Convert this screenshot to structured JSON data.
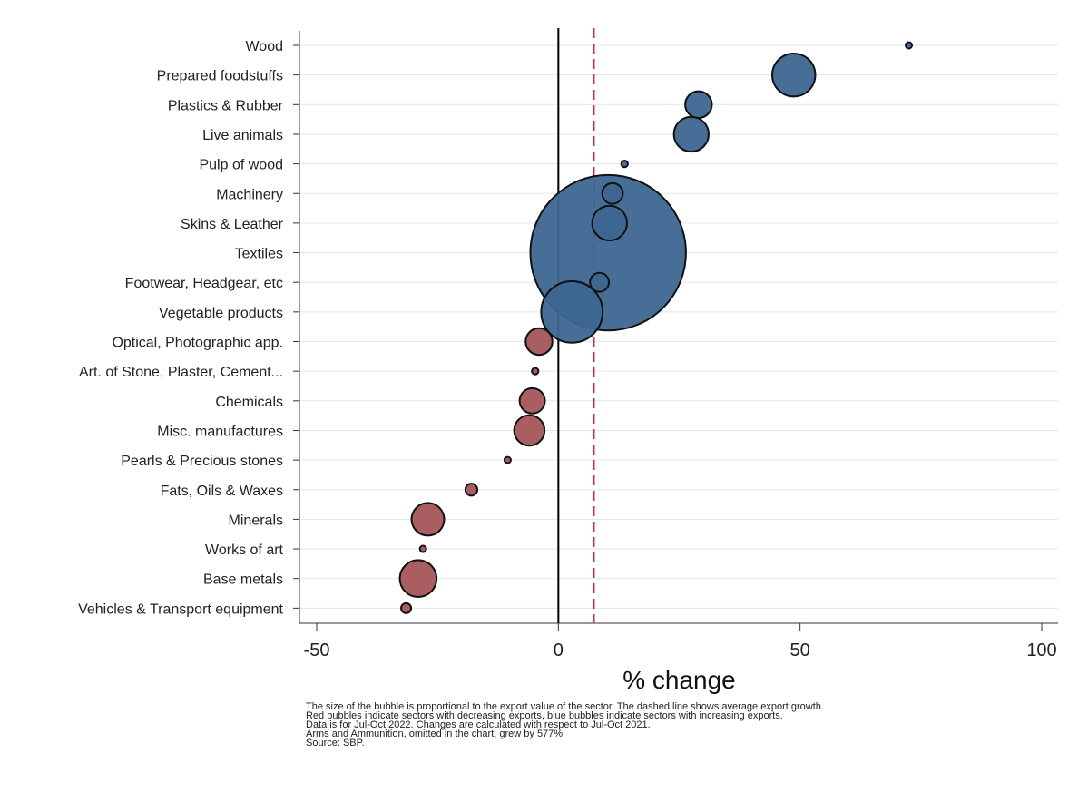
{
  "chart_data": {
    "type": "scatter",
    "subtype": "bubble",
    "xlabel": "% change",
    "xlim": [
      -50,
      100
    ],
    "xticks": [
      -50,
      0,
      50,
      100
    ],
    "reference_lines": {
      "zero": 0,
      "average_growth": 7.3
    },
    "grid": true,
    "colors": {
      "increase": "#3d6690",
      "decrease": "#a45558",
      "average_line": "#c03048",
      "zero_line": "#000000",
      "grid": "#dde6ee"
    },
    "categories": [
      "Wood",
      "Prepared foodstuffs",
      "Plastics & Rubber",
      "Live animals",
      "Pulp of wood",
      "Machinery",
      "Skins & Leather",
      "Textiles",
      "Footwear, Headgear, etc",
      "Vegetable products",
      "Optical, Photographic app.",
      "Art. of Stone, Plaster, Cement...",
      "Chemicals",
      "Misc. manufactures",
      "Pearls & Precious stones",
      "Fats, Oils & Waxes",
      "Minerals",
      "Works of art",
      "Base metals",
      "Vehicles & Transport equipment"
    ],
    "values": [
      72.5,
      48.7,
      29.0,
      27.5,
      13.7,
      11.2,
      10.6,
      10.3,
      8.5,
      2.8,
      -4.0,
      -4.8,
      -5.4,
      -6.0,
      -10.5,
      -18.0,
      -27.0,
      -28.0,
      -29.0,
      -31.5
    ],
    "bubble_size": [
      0.03,
      2.6,
      1.0,
      1.7,
      0.06,
      0.6,
      1.7,
      34.0,
      0.5,
      5.3,
      1.0,
      0.06,
      0.9,
      1.3,
      0.03,
      0.2,
      1.5,
      0.04,
      1.9,
      0.14
    ],
    "direction": [
      "increase",
      "increase",
      "increase",
      "increase",
      "increase",
      "increase",
      "increase",
      "increase",
      "increase",
      "increase",
      "decrease",
      "decrease",
      "decrease",
      "decrease",
      "decrease",
      "decrease",
      "decrease",
      "decrease",
      "decrease",
      "decrease"
    ]
  },
  "notes": [
    "The size of the bubble is proportional to the export value of the sector. The dashed line shows average export growth.",
    "Red bubbles indicate sectors with decreasing exports, blue bubbles indicate sectors with increasing exports.",
    "Data is for Jul-Oct 2022. Changes are calculated with respect to Jul-Oct 2021.",
    "Arms and Ammunition, omitted in the chart, grew by 577%",
    "Source: SBP."
  ]
}
